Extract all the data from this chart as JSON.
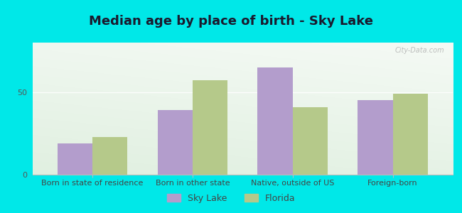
{
  "title": "Median age by place of birth - Sky Lake",
  "categories": [
    "Born in state of residence",
    "Born in other state",
    "Native, outside of US",
    "Foreign-born"
  ],
  "sky_lake_values": [
    19,
    39,
    65,
    45
  ],
  "florida_values": [
    23,
    57,
    41,
    49
  ],
  "sky_lake_color": "#b39dcc",
  "florida_color": "#b5c98a",
  "background_color": "#00e8e8",
  "ylim": [
    0,
    80
  ],
  "yticks": [
    0,
    50
  ],
  "bar_width": 0.35,
  "legend_labels": [
    "Sky Lake",
    "Florida"
  ],
  "title_fontsize": 13,
  "label_fontsize": 8,
  "watermark_text": "City-Data.com",
  "grid_color": "#ccddcc",
  "spine_color": "#bbbbbb"
}
